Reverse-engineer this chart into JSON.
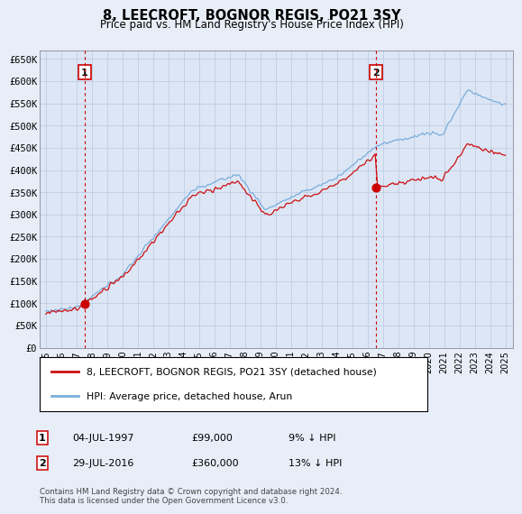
{
  "title": "8, LEECROFT, BOGNOR REGIS, PO21 3SY",
  "subtitle": "Price paid vs. HM Land Registry's House Price Index (HPI)",
  "ylabel_ticks": [
    "£0",
    "£50K",
    "£100K",
    "£150K",
    "£200K",
    "£250K",
    "£300K",
    "£350K",
    "£400K",
    "£450K",
    "£500K",
    "£550K",
    "£600K",
    "£650K"
  ],
  "ytick_values": [
    0,
    50000,
    100000,
    150000,
    200000,
    250000,
    300000,
    350000,
    400000,
    450000,
    500000,
    550000,
    600000,
    650000
  ],
  "hpi_color": "#7aaedc",
  "price_color": "#cc1111",
  "dot_color": "#cc0000",
  "vline_color": "#cc0000",
  "legend_line1": "8, LEECROFT, BOGNOR REGIS, PO21 3SY (detached house)",
  "legend_line2": "HPI: Average price, detached house, Arun",
  "footnote": "Contains HM Land Registry data © Crown copyright and database right 2024.\nThis data is licensed under the Open Government Licence v3.0.",
  "background_color": "#e8eef8",
  "plot_bg": "#dde6f5",
  "sale1_yr": 1997.54,
  "sale1_price": 99000,
  "sale2_yr": 2016.58,
  "sale2_price": 360000
}
